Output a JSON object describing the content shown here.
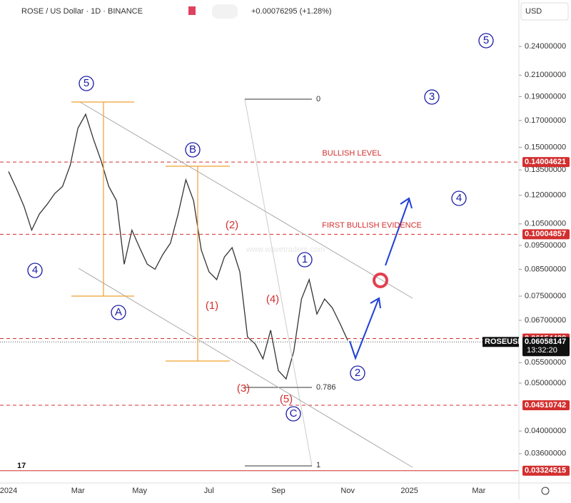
{
  "chart_data": {
    "type": "line",
    "title": "ROSE / US Dollar · 1D · BINANCE",
    "change": "+0.00076295 (+1.28%)",
    "currency": "USD",
    "symbol": "ROSEUSD",
    "countdown": "13:32:20",
    "watermark": "www.wavetraders.com",
    "log_scale": true,
    "color": "#333333",
    "categories": [
      "2024",
      null,
      null,
      null,
      null,
      null,
      null,
      null,
      null,
      "Mar",
      null,
      null,
      null,
      null,
      null,
      null,
      null,
      "May",
      null,
      null,
      null,
      null,
      null,
      null,
      null,
      null,
      "Jul",
      null,
      null,
      null,
      null,
      null,
      null,
      null,
      null,
      "Sep",
      null,
      null,
      null,
      null,
      null,
      null,
      null,
      null,
      "Nov",
      null,
      null,
      null,
      null,
      null,
      null,
      null,
      "2025",
      null,
      null,
      null,
      null,
      null,
      null,
      null,
      null,
      "Mar",
      null,
      null
    ],
    "values": [
      0.134,
      0.124,
      0.114,
      0.102,
      0.11,
      0.115,
      0.121,
      0.125,
      0.138,
      0.164,
      0.175,
      0.156,
      0.141,
      0.125,
      0.117,
      0.087,
      0.102,
      0.094,
      0.087,
      0.085,
      0.091,
      0.096,
      0.11,
      0.129,
      0.117,
      0.093,
      0.084,
      0.081,
      0.09,
      0.094,
      0.084,
      0.062,
      0.06,
      0.056,
      0.064,
      0.053,
      0.051,
      0.058,
      0.074,
      0.081,
      0.069,
      0.074,
      0.071,
      0.066,
      0.061,
      null,
      null,
      null,
      null,
      null,
      null,
      null,
      null,
      null,
      null,
      null,
      null,
      null,
      null,
      null,
      null,
      null,
      null,
      null
    ],
    "ylim": [
      0.0315,
      0.298
    ],
    "yticks": [
      {
        "value": 0.24,
        "label": "0.24000000"
      },
      {
        "value": 0.21,
        "label": "0.21000000"
      },
      {
        "value": 0.19,
        "label": "0.19000000"
      },
      {
        "value": 0.17,
        "label": "0.17000000"
      },
      {
        "value": 0.15,
        "label": "0.15000000"
      },
      {
        "value": 0.135,
        "label": "0.13500000"
      },
      {
        "value": 0.12,
        "label": "0.12000000"
      },
      {
        "value": 0.105,
        "label": "0.10500000"
      },
      {
        "value": 0.095,
        "label": "0.09500000"
      },
      {
        "value": 0.085,
        "label": "0.08500000"
      },
      {
        "value": 0.075,
        "label": "0.07500000"
      },
      {
        "value": 0.067,
        "label": "0.06700000"
      },
      {
        "value": 0.055,
        "label": "0.05500000"
      },
      {
        "value": 0.05,
        "label": "0.05000000"
      },
      {
        "value": 0.04,
        "label": "0.04000000"
      },
      {
        "value": 0.036,
        "label": "0.03600000"
      }
    ],
    "levels": [
      0.14004621,
      0.10004857,
      0.06154428,
      0.04510742,
      0.03324515
    ],
    "last_price": 0.06058147,
    "level_color": "#d32f2f",
    "annotations": [
      "5",
      "4",
      "A",
      "B",
      "1",
      "2",
      "3",
      "4",
      "5",
      "C",
      "(2)",
      "(1)",
      "(4)",
      "(3)",
      "(5)",
      "BULLISH LEVEL",
      "FIRST BULLISH EVIDENCE",
      "0",
      "0.786",
      "1"
    ]
  }
}
